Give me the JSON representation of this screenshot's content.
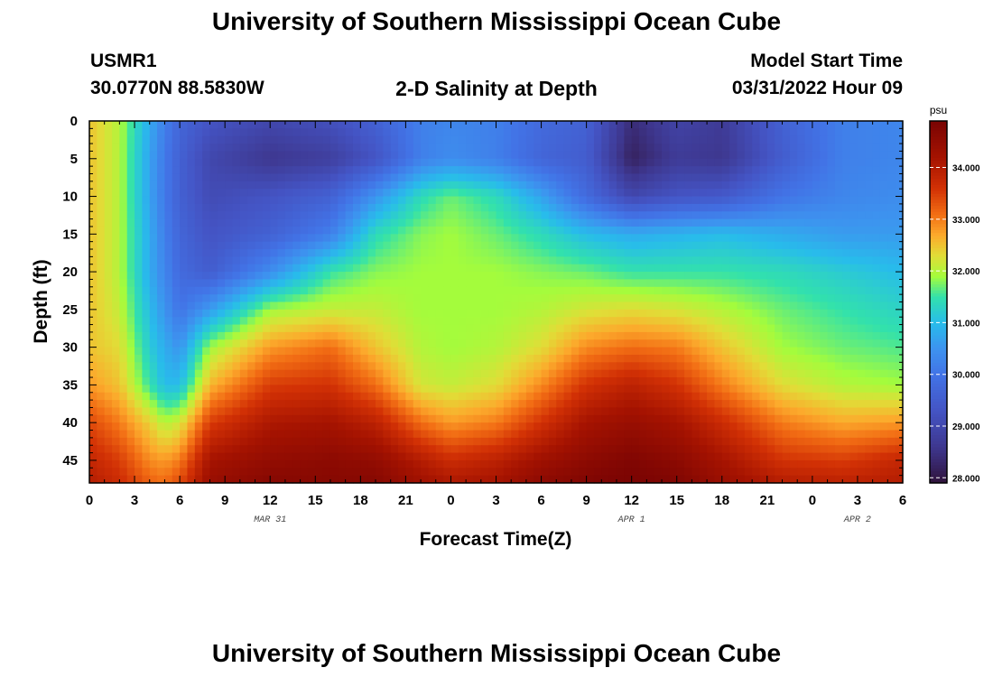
{
  "header": {
    "title": "University of Southern Mississippi Ocean Cube",
    "station": "USMR1",
    "location": "30.0770N  88.5830W",
    "subtitle": "2-D Salinity at Depth",
    "model_label": "Model Start Time",
    "model_time": "03/31/2022 Hour 09"
  },
  "footer": {
    "title": "University of Southern Mississippi Ocean Cube"
  },
  "chart_data": {
    "type": "heatmap",
    "title": "2-D Salinity at Depth",
    "xlabel": "Forecast Time(Z)",
    "ylabel": "Depth (ft)",
    "x_ticks": [
      "0",
      "3",
      "6",
      "9",
      "12",
      "15",
      "18",
      "21",
      "0",
      "3",
      "6",
      "9",
      "12",
      "15",
      "18",
      "21",
      "0",
      "3",
      "6"
    ],
    "x_range_hours": [
      0,
      54
    ],
    "date_labels": [
      {
        "hour": 12,
        "text": "MAR 31"
      },
      {
        "hour": 36,
        "text": "APR 1"
      },
      {
        "hour": 51,
        "text": "APR 2"
      }
    ],
    "y_ticks": [
      "0",
      "5",
      "10",
      "15",
      "20",
      "25",
      "30",
      "35",
      "40",
      "45"
    ],
    "y_range_ft": [
      0,
      48
    ],
    "y_inverted": true,
    "colorbar": {
      "unit": "psu",
      "range": [
        27.9,
        34.9
      ],
      "ticks": [
        "34.000",
        "33.000",
        "32.000",
        "31.000",
        "30.000",
        "29.000",
        "28.000"
      ],
      "colormap": [
        [
          27.9,
          "#30123b"
        ],
        [
          28.6,
          "#3e378f"
        ],
        [
          29.3,
          "#4454c4"
        ],
        [
          30.0,
          "#4273e6"
        ],
        [
          30.5,
          "#3d93ef"
        ],
        [
          31.0,
          "#28bceb"
        ],
        [
          31.5,
          "#32e1ac"
        ],
        [
          31.9,
          "#a4fc3c"
        ],
        [
          32.3,
          "#e1dd37"
        ],
        [
          32.7,
          "#fcaa2c"
        ],
        [
          33.1,
          "#f26d14"
        ],
        [
          33.6,
          "#d23105"
        ],
        [
          34.2,
          "#a51301"
        ],
        [
          34.9,
          "#7a0403"
        ]
      ]
    },
    "salinity_grid": {
      "hours": [
        0,
        2,
        4,
        5,
        6,
        8,
        12,
        16,
        19,
        22,
        24,
        27,
        30,
        33,
        36,
        39,
        42,
        46,
        50,
        54
      ],
      "depths": [
        0,
        5,
        10,
        15,
        20,
        25,
        30,
        35,
        40,
        45,
        48
      ],
      "values": [
        [
          32.5,
          32.0,
          30.8,
          30.2,
          29.7,
          29.3,
          29.0,
          29.2,
          29.6,
          30.2,
          30.3,
          30.2,
          29.8,
          29.6,
          28.4,
          28.9,
          28.7,
          29.6,
          30.2,
          30.3
        ],
        [
          32.5,
          32.0,
          30.7,
          30.1,
          29.6,
          29.0,
          28.6,
          28.8,
          29.3,
          30.2,
          30.4,
          30.2,
          29.7,
          29.5,
          28.2,
          28.7,
          28.6,
          29.5,
          30.2,
          30.3
        ],
        [
          32.5,
          32.0,
          30.7,
          30.1,
          29.6,
          29.1,
          29.3,
          29.6,
          30.5,
          31.4,
          31.7,
          31.4,
          30.7,
          29.8,
          29.0,
          29.3,
          29.4,
          30.0,
          30.3,
          30.4
        ],
        [
          32.5,
          32.0,
          30.8,
          30.2,
          29.7,
          29.3,
          29.6,
          30.2,
          31.4,
          31.8,
          31.9,
          31.7,
          31.4,
          31.0,
          30.8,
          30.9,
          31.0,
          30.8,
          30.6,
          30.6
        ],
        [
          32.5,
          32.0,
          30.8,
          30.3,
          29.8,
          29.5,
          30.4,
          31.5,
          31.8,
          31.9,
          31.9,
          31.9,
          31.8,
          31.7,
          31.5,
          31.5,
          31.5,
          31.4,
          31.2,
          31.0
        ],
        [
          32.5,
          32.1,
          31.0,
          30.5,
          30.0,
          30.6,
          31.9,
          32.1,
          32.1,
          31.9,
          31.9,
          31.9,
          32.0,
          32.2,
          32.3,
          32.2,
          32.0,
          31.7,
          31.5,
          31.3
        ],
        [
          32.5,
          32.3,
          31.2,
          30.8,
          30.5,
          31.9,
          32.8,
          33.1,
          32.5,
          32.0,
          31.9,
          32.0,
          32.3,
          32.9,
          33.1,
          33.0,
          32.5,
          31.9,
          31.7,
          31.6
        ],
        [
          32.8,
          32.5,
          31.5,
          31.0,
          31.0,
          32.6,
          33.5,
          33.6,
          33.1,
          32.2,
          32.1,
          32.3,
          32.9,
          33.6,
          33.9,
          33.6,
          33.0,
          32.3,
          32.0,
          31.9
        ],
        [
          33.4,
          33.0,
          32.4,
          32.0,
          32.2,
          33.5,
          34.1,
          34.2,
          33.9,
          33.1,
          32.8,
          33.0,
          33.6,
          34.2,
          34.4,
          34.2,
          33.7,
          33.0,
          32.7,
          32.8
        ],
        [
          33.8,
          33.5,
          32.9,
          32.8,
          33.0,
          34.2,
          34.5,
          34.6,
          34.5,
          34.0,
          33.7,
          33.9,
          34.3,
          34.6,
          34.8,
          34.6,
          34.2,
          33.6,
          33.5,
          33.8
        ],
        [
          34.0,
          33.7,
          33.2,
          33.1,
          33.4,
          34.4,
          34.7,
          34.7,
          34.7,
          34.3,
          34.1,
          34.2,
          34.6,
          34.8,
          34.9,
          34.8,
          34.4,
          34.0,
          33.9,
          34.0
        ]
      ]
    }
  }
}
